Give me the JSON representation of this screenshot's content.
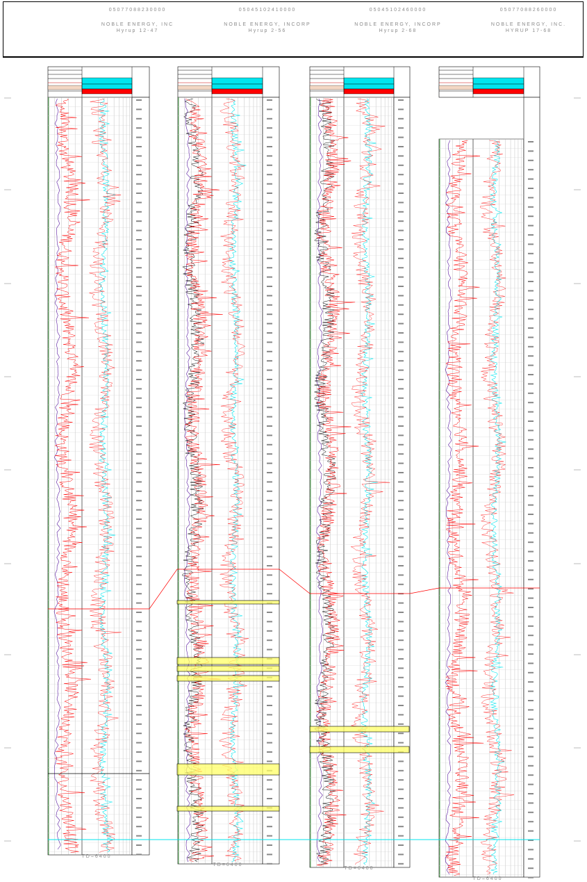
{
  "wells": [
    {
      "api": "05077088230000",
      "operator": "NOBLE ENERGY, INC",
      "name": "Hyrup 12-47",
      "td_label": "TD=6400"
    },
    {
      "api": "05045102410000",
      "operator": "NOBLE ENERGY, INCORP",
      "name": "Hyrup 2-56",
      "td_label": "TD=6400"
    },
    {
      "api": "05045102460000",
      "operator": "NOBLE ENERGY, INCORP",
      "name": "Hyrup 2-68",
      "td_label": "TD=6400"
    },
    {
      "api": "05077088260000",
      "operator": "NOBLE ENERGY, INC.",
      "name": "HYRUP 17-68",
      "td_label": "TD=6400"
    }
  ],
  "colors": {
    "gamma_ray": "#ff0000",
    "resistivity": "#00e5ee",
    "density": "#000000",
    "sp": "#5a1aa0",
    "correlation": "#ff0000",
    "datum": "#00e5ee",
    "highlight": "#ffff66"
  }
}
